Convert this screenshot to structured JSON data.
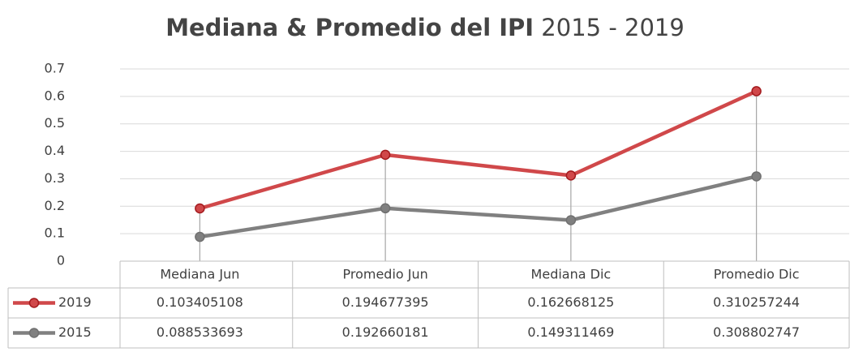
{
  "chart_data": {
    "type": "line",
    "stacked": true,
    "title": "Mediana & Promedio del IPI",
    "title_suffix": "2015 - 2019",
    "categories": [
      "Mediana Jun",
      "Promedio Jun",
      "Mediana Dic",
      "Promedio Dic"
    ],
    "series": [
      {
        "name": "2019",
        "color": "#d0484a",
        "marker_edge": "#a31a1d",
        "values": [
          0.103405108,
          0.194677395,
          0.162668125,
          0.310257244
        ]
      },
      {
        "name": "2015",
        "color": "#808080",
        "marker_edge": "#707070",
        "values": [
          0.088533693,
          0.192660181,
          0.149311469,
          0.308802747
        ]
      }
    ],
    "value_labels": [
      [
        "0.103405108",
        "0.194677395",
        "0.162668125",
        "0.310257244"
      ],
      [
        "0.088533693",
        "0.192660181",
        "0.149311469",
        "0.308802747"
      ]
    ],
    "ylim": [
      0,
      0.7
    ],
    "yticks": [
      0,
      0.1,
      0.2,
      0.3,
      0.4,
      0.5,
      0.6,
      0.7
    ],
    "grid": true,
    "drop_lines": true,
    "data_table": true
  }
}
